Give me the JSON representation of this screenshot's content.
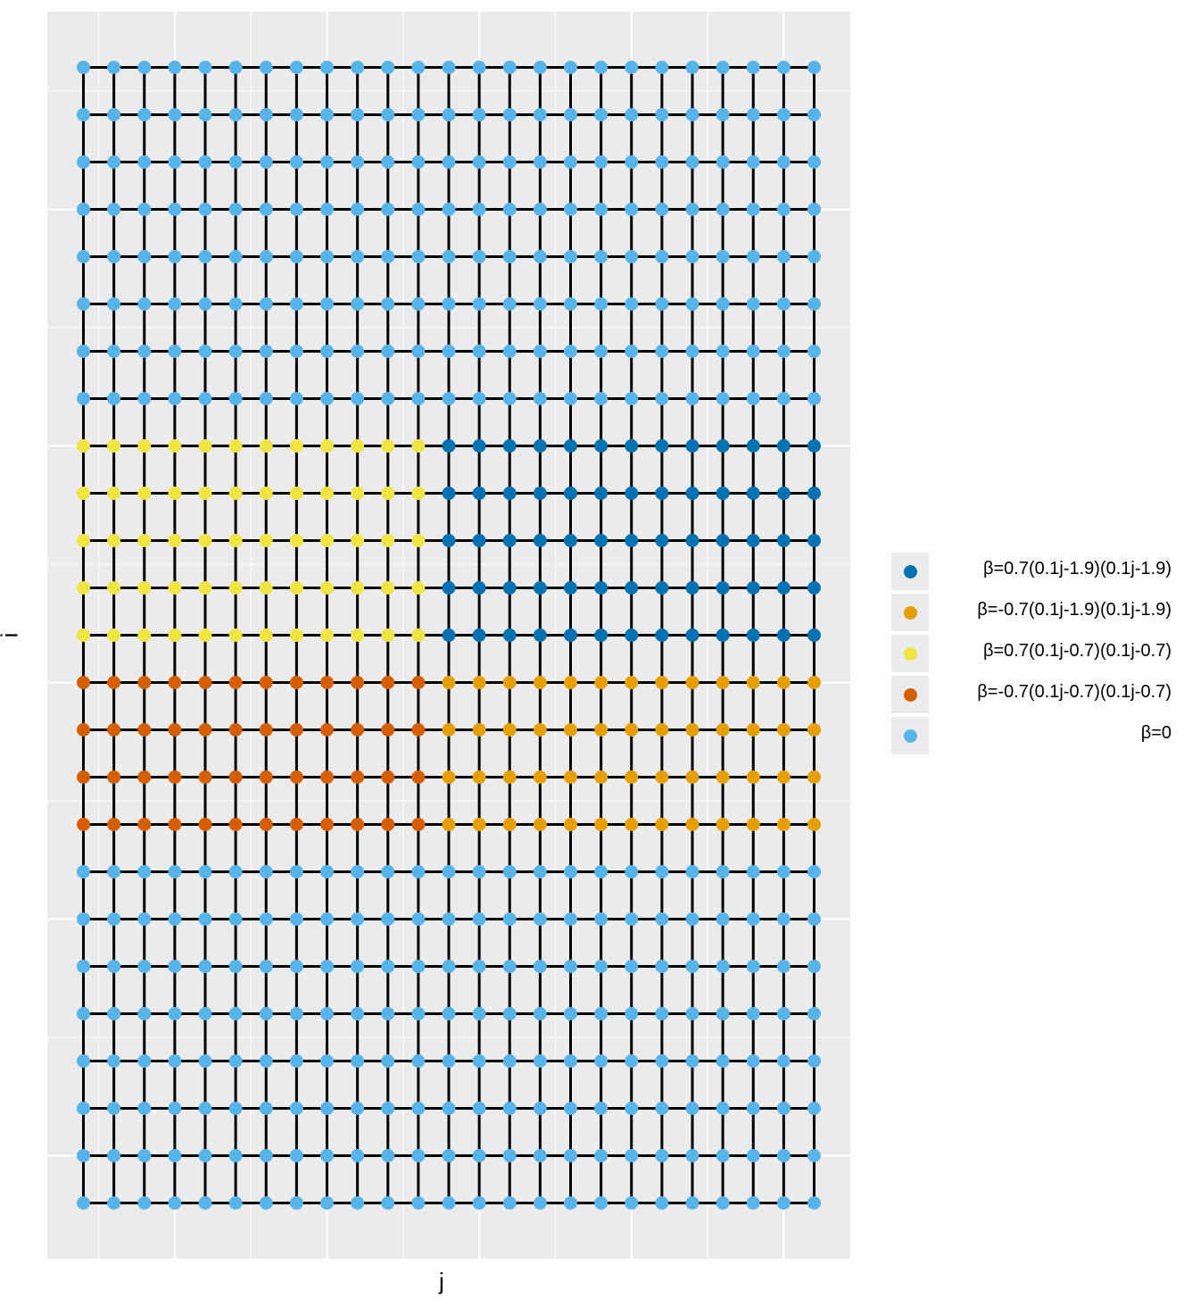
{
  "chart_data": {
    "type": "scatter",
    "xlabel": "j",
    "ylabel": "i",
    "grid": true,
    "legend_position": "right",
    "nodes": {
      "columns": 25,
      "rows": 25
    },
    "edges": "lattice",
    "legend": [
      {
        "key": "b_pos_19",
        "label": "β=0.7(0.1j-1.9)(0.1j-1.9)",
        "color": "#0072B2"
      },
      {
        "key": "b_neg_19",
        "label": "β=-0.7(0.1j-1.9)(0.1j-1.9)",
        "color": "#E69F00"
      },
      {
        "key": "b_pos_07",
        "label": "β=0.7(0.1j-0.7)(0.1j-0.7)",
        "color": "#F0E442"
      },
      {
        "key": "b_neg_07",
        "label": "β=-0.7(0.1j-0.7)(0.1j-0.7)",
        "color": "#D55E00"
      },
      {
        "key": "b_zero",
        "label": "β=0",
        "color": "#56B4E9"
      }
    ],
    "regions": [
      {
        "group": "b_pos_07",
        "j": [
          1,
          12
        ],
        "i": [
          9,
          13
        ]
      },
      {
        "group": "b_pos_19",
        "j": [
          13,
          25
        ],
        "i": [
          9,
          13
        ]
      },
      {
        "group": "b_neg_07",
        "j": [
          1,
          12
        ],
        "i": [
          14,
          17
        ]
      },
      {
        "group": "b_neg_19",
        "j": [
          13,
          25
        ],
        "i": [
          14,
          17
        ]
      }
    ],
    "default_group": "b_zero"
  }
}
